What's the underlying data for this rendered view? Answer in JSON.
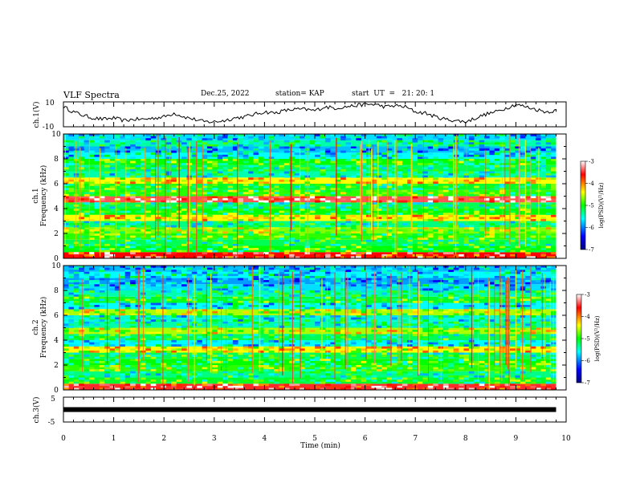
{
  "header": {
    "title": "VLF Spectra",
    "date": "Dec.25, 2022",
    "station": "station= KAP",
    "start": "start  UT  =   21: 20: 1"
  },
  "panels": {
    "ch1v_label": "ch.1(V)",
    "ch1v_ticks": [
      "10",
      "-10"
    ],
    "ch1_label": "ch.1",
    "ch2_label": "ch.2",
    "freq_label": "Frequency (kHz)",
    "freq_ticks": [
      "0",
      "2",
      "4",
      "6",
      "8",
      "10"
    ],
    "ch3v_label": "ch.3(V)",
    "ch3v_ticks": [
      "5",
      "-5"
    ],
    "xlabel": "Time (min)",
    "x_ticks": [
      "0",
      "1",
      "2",
      "3",
      "4",
      "5",
      "6",
      "7",
      "8",
      "9",
      "10"
    ],
    "colorbar_label": "log(PSD)(V²/Hz)",
    "colorbar_ticks": [
      "-3",
      "-4",
      "-5",
      "-6",
      "-7"
    ]
  },
  "colors": {
    "colormap": [
      "#00007f",
      "#0000ff",
      "#00ffff",
      "#00ff00",
      "#ffff00",
      "#ff0000",
      "#ffffff"
    ],
    "trace": "#000000"
  },
  "chart_data": [
    {
      "type": "line",
      "title": "",
      "ylabel": "ch.1(V)",
      "xlim": [
        0,
        10
      ],
      "ylim": [
        -10,
        10
      ],
      "series": [
        {
          "x": [
            0,
            0.2,
            0.4,
            0.6,
            0.8,
            1.0,
            1.2,
            1.4,
            1.6,
            1.8,
            2.0,
            2.2,
            2.4,
            2.6,
            2.8,
            3.0,
            3.2,
            3.4,
            3.6,
            3.8,
            4.0,
            4.2,
            4.4,
            4.6,
            4.8,
            5.0,
            5.2,
            5.4,
            5.6,
            5.8,
            6.0,
            6.2,
            6.4,
            6.6,
            6.8,
            7.0,
            7.2,
            7.4,
            7.6,
            7.8,
            8.0,
            8.2,
            8.4,
            8.6,
            8.8,
            9.0,
            9.2,
            9.4,
            9.6,
            9.8
          ],
          "values": [
            6,
            2,
            -1,
            -3,
            -4,
            -3,
            -5,
            -4,
            -4,
            -3,
            -2,
            1,
            -2,
            -4,
            -6,
            -6,
            -5,
            -3,
            -2,
            0,
            2,
            1,
            3,
            4,
            4,
            3,
            6,
            5,
            6,
            7,
            8,
            8,
            6,
            7,
            6,
            2,
            1,
            -2,
            -4,
            -5,
            -6,
            -3,
            0,
            2,
            5,
            8,
            6,
            4,
            2,
            3
          ]
        }
      ]
    },
    {
      "type": "heatmap",
      "title": "",
      "ylabel": "ch.1 Frequency (kHz)",
      "xlim": [
        0,
        10
      ],
      "ylim": [
        0,
        10
      ],
      "colorbar": {
        "label": "log(PSD)(V²/Hz)",
        "range": [
          -7,
          -3
        ]
      },
      "band_freqs_khz": [
        0.5,
        1.0,
        1.5,
        2.0,
        2.5,
        3.0,
        3.5,
        4.0,
        4.5,
        5.0,
        5.5,
        6.0,
        6.5,
        7.0,
        7.5,
        8.0,
        8.5,
        9.0,
        9.5,
        10.0
      ],
      "band_log_psd": [
        -3.6,
        -5.0,
        -5.2,
        -4.9,
        -4.7,
        -5.3,
        -4.4,
        -5.0,
        -5.2,
        -3.4,
        -4.9,
        -5.1,
        -4.4,
        -5.4,
        -5.2,
        -5.0,
        -5.6,
        -5.8,
        -5.4,
        -5.7
      ]
    },
    {
      "type": "heatmap",
      "title": "",
      "ylabel": "ch.2 Frequency (kHz)",
      "xlim": [
        0,
        10
      ],
      "ylim": [
        0,
        10
      ],
      "colorbar": {
        "label": "log(PSD)(V²/Hz)",
        "range": [
          -7,
          -3
        ]
      },
      "band_freqs_khz": [
        0.5,
        1.0,
        1.5,
        2.0,
        2.5,
        3.0,
        3.5,
        4.0,
        4.5,
        5.0,
        5.5,
        6.0,
        6.5,
        7.0,
        7.5,
        8.0,
        8.5,
        9.0,
        9.5,
        10.0
      ],
      "band_log_psd": [
        -3.5,
        -5.1,
        -5.3,
        -4.9,
        -5.0,
        -5.2,
        -4.4,
        -5.6,
        -5.2,
        -4.6,
        -5.4,
        -5.5,
        -4.6,
        -5.6,
        -5.1,
        -5.4,
        -5.7,
        -5.9,
        -5.6,
        -5.8
      ]
    },
    {
      "type": "line",
      "title": "",
      "ylabel": "ch.3(V)",
      "xlabel": "Time (min)",
      "xlim": [
        0,
        10
      ],
      "ylim": [
        -5,
        5
      ],
      "series": [
        {
          "x": [
            0,
            9.8
          ],
          "values": [
            0,
            0
          ]
        }
      ]
    }
  ]
}
